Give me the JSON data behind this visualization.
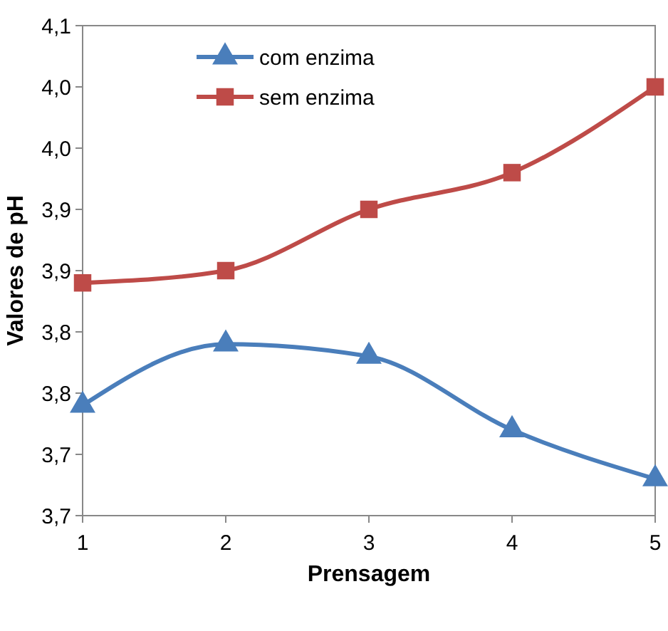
{
  "chart_data": {
    "type": "line",
    "xlabel": "Prensagem",
    "ylabel": "Valores de pH",
    "x": [
      1,
      2,
      3,
      4,
      5
    ],
    "xlim": [
      1,
      5
    ],
    "xticks": [
      1,
      2,
      3,
      4,
      5
    ],
    "ylim": [
      3.7,
      4.1
    ],
    "yticks": [
      {
        "value": 3.7,
        "label": "3,7"
      },
      {
        "value": 3.75,
        "label": "3,7"
      },
      {
        "value": 3.8,
        "label": "3,8"
      },
      {
        "value": 3.85,
        "label": "3,8"
      },
      {
        "value": 3.9,
        "label": "3,9"
      },
      {
        "value": 3.95,
        "label": "3,9"
      },
      {
        "value": 4.0,
        "label": "4,0"
      },
      {
        "value": 4.05,
        "label": "4,0"
      },
      {
        "value": 4.1,
        "label": "4,1"
      }
    ],
    "legend": "top left",
    "grid": false,
    "series": [
      {
        "name": "com enzima",
        "color": "#4a7ebb",
        "marker": "triangle",
        "values": [
          3.79,
          3.84,
          3.83,
          3.77,
          3.73
        ]
      },
      {
        "name": "sem enzima",
        "color": "#be4b48",
        "marker": "square",
        "values": [
          3.89,
          3.9,
          3.95,
          3.98,
          4.05
        ]
      }
    ]
  }
}
